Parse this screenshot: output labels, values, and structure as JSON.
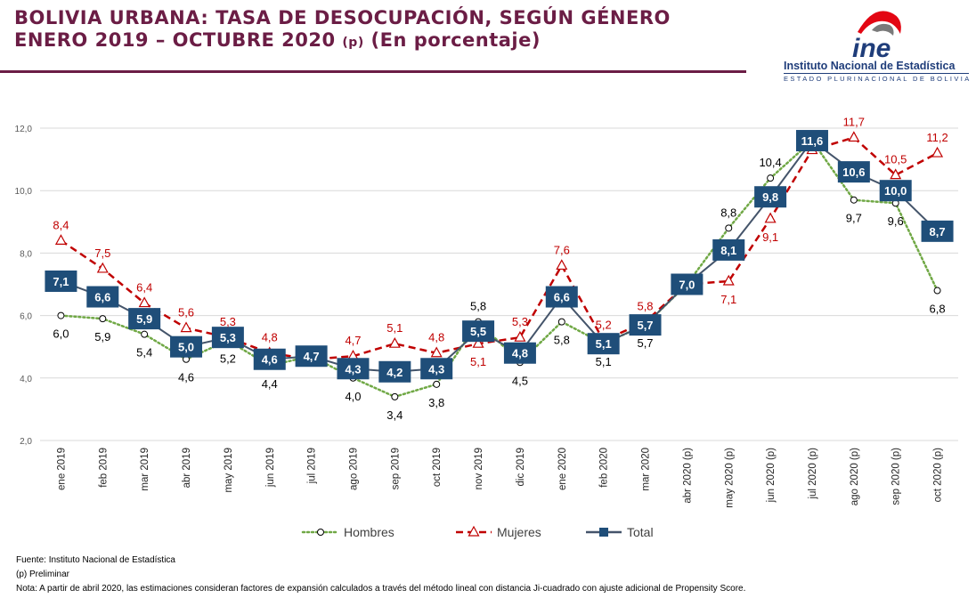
{
  "header": {
    "title_line1": "BOLIVIA URBANA: TASA DE DESOCUPACIÓN, SEGÚN GÉNERO",
    "title_line2": "ENERO 2019 – OCTUBRE 2020",
    "title_mark": "(p)",
    "title_unit": "(En porcentaje)"
  },
  "logo": {
    "acronym": "ine",
    "name": "Instituto Nacional de Estadística",
    "subtitle": "ESTADO PLURINACIONAL DE BOLIVIA",
    "colors": {
      "red": "#e30613",
      "blue": "#1f3d7a",
      "gray": "#7a7a7a"
    }
  },
  "chart_data": {
    "type": "line",
    "categories": [
      "ene 2019",
      "feb 2019",
      "mar 2019",
      "abr 2019",
      "may 2019",
      "jun 2019",
      "jul 2019",
      "ago 2019",
      "sep 2019",
      "oct 2019",
      "nov 2019",
      "dic 2019",
      "ene 2020",
      "feb 2020",
      "mar 2020",
      "abr 2020 (p)",
      "may 2020 (p)",
      "jun 2020 (p)",
      "jul 2020 (p)",
      "ago 2020 (p)",
      "sep 2020 (p)",
      "oct 2020 (p)"
    ],
    "ylim": [
      2,
      12
    ],
    "yticks": [
      "2,0",
      "4,0",
      "6,0",
      "8,0",
      "10,0",
      "12,0"
    ],
    "grid": true,
    "legend_position": "bottom",
    "series": [
      {
        "name": "Hombres",
        "color": "#70a845",
        "style": "dotted",
        "marker": "circle",
        "values": [
          6.0,
          5.9,
          5.4,
          4.6,
          5.2,
          4.4,
          4.7,
          4.0,
          3.4,
          3.8,
          5.8,
          4.5,
          5.8,
          5.1,
          5.7,
          7.0,
          8.8,
          10.4,
          11.6,
          9.7,
          9.6,
          6.8
        ],
        "labels": [
          "6,0",
          "5,9",
          "5,4",
          "4,6",
          "5,2",
          "4,4",
          "",
          "4,0",
          "3,4",
          "3,8",
          "5,8",
          "4,5",
          "5,8",
          "5,1",
          "5,7",
          "",
          "8,8",
          "10,4",
          "",
          "9,7",
          "9,6",
          "6,8"
        ]
      },
      {
        "name": "Mujeres",
        "color": "#c00000",
        "style": "dashed",
        "marker": "triangle",
        "values": [
          8.4,
          7.5,
          6.4,
          5.6,
          5.3,
          4.8,
          4.6,
          4.7,
          5.1,
          4.8,
          5.1,
          5.3,
          7.6,
          5.2,
          5.8,
          7.0,
          7.1,
          9.1,
          11.3,
          11.7,
          10.5,
          11.2
        ],
        "labels": [
          "8,4",
          "7,5",
          "6,4",
          "5,6",
          "5,3",
          "4,8",
          "",
          "4,7",
          "5,1",
          "4,8",
          "5,1",
          "5,3",
          "7,6",
          "5,2",
          "5,8",
          "",
          "7,1",
          "9,1",
          "",
          "11,7",
          "10,5",
          "11,2"
        ]
      },
      {
        "name": "Total",
        "color": "#44546a",
        "box_color": "#1f4e79",
        "style": "solid",
        "marker": "square",
        "values": [
          7.1,
          6.6,
          5.9,
          5.0,
          5.3,
          4.6,
          4.7,
          4.3,
          4.2,
          4.3,
          5.5,
          4.8,
          6.6,
          5.1,
          5.7,
          7.0,
          8.1,
          9.8,
          11.6,
          10.6,
          10.0,
          8.7
        ],
        "labels": [
          "7,1",
          "6,6",
          "5,9",
          "5,0",
          "5,3",
          "4,6",
          "4,7",
          "4,3",
          "4,2",
          "4,3",
          "5,5",
          "4,8",
          "6,6",
          "5,1",
          "5,7",
          "7,0",
          "8,1",
          "9,8",
          "11,6",
          "10,6",
          "10,0",
          "8,7"
        ]
      }
    ]
  },
  "footer": {
    "source": "Fuente: Instituto  Nacional de Estadística",
    "preliminary": "(p) Preliminar",
    "note": "Nota: A partir de abril 2020, las estimaciones  consideran factores  de expansión calculados  a través del método lineal con distancia  Ji-cuadrado con ajuste adicional de Propensity Score."
  }
}
